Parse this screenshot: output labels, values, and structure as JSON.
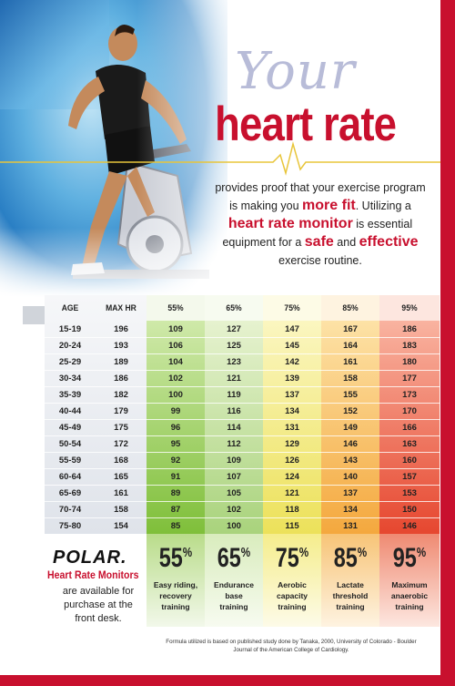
{
  "title": {
    "your": "Your",
    "main": "heart rate"
  },
  "intro": {
    "l1": "provides proof that your exercise program",
    "l2a": "is making you ",
    "l2b": "more fit",
    "l2c": ". Utilizing a",
    "l3a": "heart rate monitor",
    "l3b": " is essential",
    "l4a": "equipment for a ",
    "l4b": "safe",
    "l4c": " and ",
    "l4d": "effective",
    "l5": "exercise routine."
  },
  "table": {
    "headers": [
      "AGE",
      "MAX HR",
      "55%",
      "65%",
      "75%",
      "85%",
      "95%"
    ],
    "rows": [
      [
        "15-19",
        "196",
        "109",
        "127",
        "147",
        "167",
        "186"
      ],
      [
        "20-24",
        "193",
        "106",
        "125",
        "145",
        "164",
        "183"
      ],
      [
        "25-29",
        "189",
        "104",
        "123",
        "142",
        "161",
        "180"
      ],
      [
        "30-34",
        "186",
        "102",
        "121",
        "139",
        "158",
        "177"
      ],
      [
        "35-39",
        "182",
        "100",
        "119",
        "137",
        "155",
        "173"
      ],
      [
        "40-44",
        "179",
        "99",
        "116",
        "134",
        "152",
        "170"
      ],
      [
        "45-49",
        "175",
        "96",
        "114",
        "131",
        "149",
        "166"
      ],
      [
        "50-54",
        "172",
        "95",
        "112",
        "129",
        "146",
        "163"
      ],
      [
        "55-59",
        "168",
        "92",
        "109",
        "126",
        "143",
        "160"
      ],
      [
        "60-64",
        "165",
        "91",
        "107",
        "124",
        "140",
        "157"
      ],
      [
        "65-69",
        "161",
        "89",
        "105",
        "121",
        "137",
        "153"
      ],
      [
        "70-74",
        "158",
        "87",
        "102",
        "118",
        "134",
        "150"
      ],
      [
        "75-80",
        "154",
        "85",
        "100",
        "115",
        "131",
        "146"
      ]
    ]
  },
  "zones": [
    {
      "pct": "55",
      "sign": "%",
      "l1": "Easy riding,",
      "l2": "recovery",
      "l3": "training",
      "color": "#8cc63f"
    },
    {
      "pct": "65",
      "sign": "%",
      "l1": "Endurance",
      "l2": "base",
      "l3": "training",
      "color": "#cfe6a5"
    },
    {
      "pct": "75",
      "sign": "%",
      "l1": "Aerobic",
      "l2": "capacity",
      "l3": "training",
      "color": "#f2e86b"
    },
    {
      "pct": "85",
      "sign": "%",
      "l1": "Lactate",
      "l2": "threshold",
      "l3": "training",
      "color": "#f6b44a"
    },
    {
      "pct": "95",
      "sign": "%",
      "l1": "Maximum",
      "l2": "anaerobic",
      "l3": "training",
      "color": "#ea5a3f"
    }
  ],
  "polar": {
    "logo": "POLAR.",
    "title": "Heart Rate Monitors",
    "sub1": "are available for",
    "sub2": "purchase at the",
    "sub3": "front desk."
  },
  "footnote": {
    "l1": "Formula utilized is based on published study done by Tanaka, 2000, University of Colorado - Boulder",
    "l2": "Journal of the American College of Cardiology."
  },
  "colors": {
    "accent": "#c8102e"
  },
  "icons": [
    "spinning-bike-rider-photo",
    "heartbeat-pulse-line",
    "polar-logo"
  ]
}
